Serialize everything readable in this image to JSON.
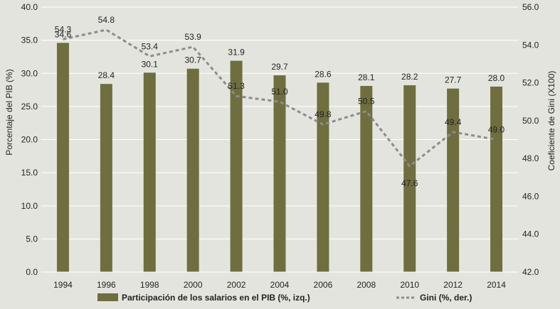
{
  "chart_data": {
    "type": "bar",
    "categories": [
      "1994",
      "1996",
      "1998",
      "2000",
      "2002",
      "2004",
      "2006",
      "2008",
      "2010",
      "2012",
      "2014"
    ],
    "series": [
      {
        "name": "Participación de los salarios en el PIB (%, izq.)",
        "type": "bar",
        "axis": "left",
        "color": "#6e6e3f",
        "values": [
          34.6,
          28.4,
          30.1,
          30.7,
          31.9,
          29.7,
          28.6,
          28.1,
          28.2,
          27.7,
          28.0
        ],
        "labels": [
          "34.6",
          "28.4",
          "30.1",
          "30.7",
          "31.9",
          "29.7",
          "28.6",
          "28.1",
          "28.2",
          "27.7",
          "28.0"
        ]
      },
      {
        "name": "Gini (%, der.)",
        "type": "line",
        "style": "dashed",
        "axis": "right",
        "color": "#8c8c8c",
        "values": [
          54.3,
          54.8,
          53.4,
          53.9,
          51.3,
          51.0,
          49.8,
          50.5,
          47.6,
          49.4,
          49.0
        ],
        "labels": [
          "54.3",
          "54.8",
          "53.4",
          "53.9",
          "51.3",
          "51.0",
          "49.8",
          "50.5",
          "47.6",
          "49.4",
          "49.0"
        ]
      }
    ],
    "ylabel_left": "Porcentaje del PIB (%)",
    "ylabel_right": "Coeficiente de Gini (X100)",
    "ylim_left": [
      0,
      40
    ],
    "yticks_left": [
      "0.0",
      "5.0",
      "10.0",
      "15.0",
      "20.0",
      "25.0",
      "30.0",
      "35.0",
      "40.0"
    ],
    "ylim_right": [
      42,
      56
    ],
    "yticks_right": [
      "42.0",
      "44.0",
      "46.0",
      "48.0",
      "50.0",
      "52.0",
      "54.0",
      "56.0"
    ],
    "grid": true,
    "legend_position": "bottom"
  }
}
